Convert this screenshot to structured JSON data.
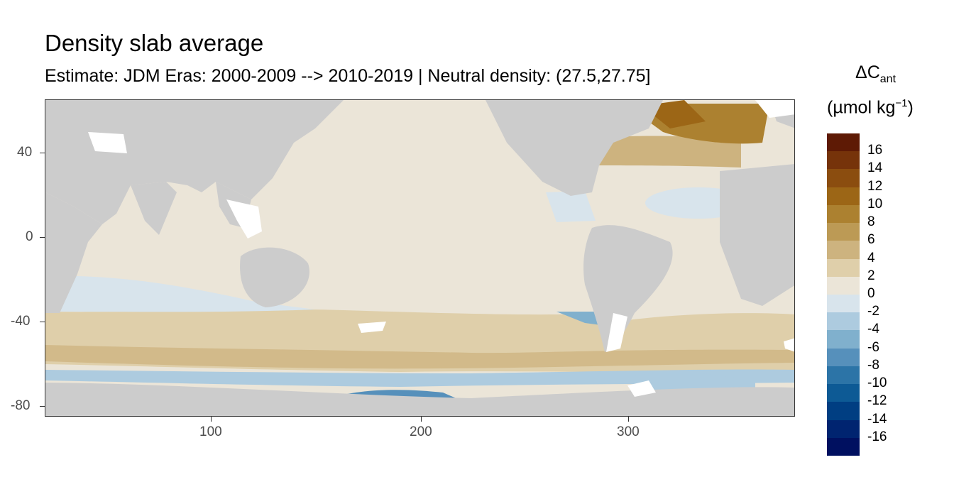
{
  "title": "Density slab average",
  "subtitle": "Estimate: JDM Eras: 2000-2009 --> 2010-2019 | Neutral density: (27.5,27.75]",
  "map": {
    "x_axis_ticks": [
      "100",
      "200",
      "300"
    ],
    "y_axis_ticks": [
      "40",
      "0",
      "-40",
      "-80"
    ],
    "land_color": "#cccccc",
    "missing_color": "#ffffff"
  },
  "legend": {
    "title_symbol": "ΔC",
    "title_subscript": "ant",
    "unit_prefix": "(µmol kg",
    "unit_superscript": "−1",
    "unit_suffix": ")",
    "labels": [
      "16",
      "14",
      "12",
      "10",
      "8",
      "6",
      "4",
      "2",
      "0",
      "-2",
      "-4",
      "-6",
      "-8",
      "-10",
      "-12",
      "-14",
      "-16"
    ],
    "colors": [
      "#5e1a05",
      "#76330a",
      "#8b4d0f",
      "#9c6616",
      "#ac8130",
      "#bc9a55",
      "#cdb37f",
      "#dfcfaa",
      "#ebe5d8",
      "#d8e4ec",
      "#adcbdf",
      "#80b0cd",
      "#5690bb",
      "#2c74a7",
      "#0d5a95",
      "#003e82",
      "#002470",
      "#001060"
    ]
  }
}
